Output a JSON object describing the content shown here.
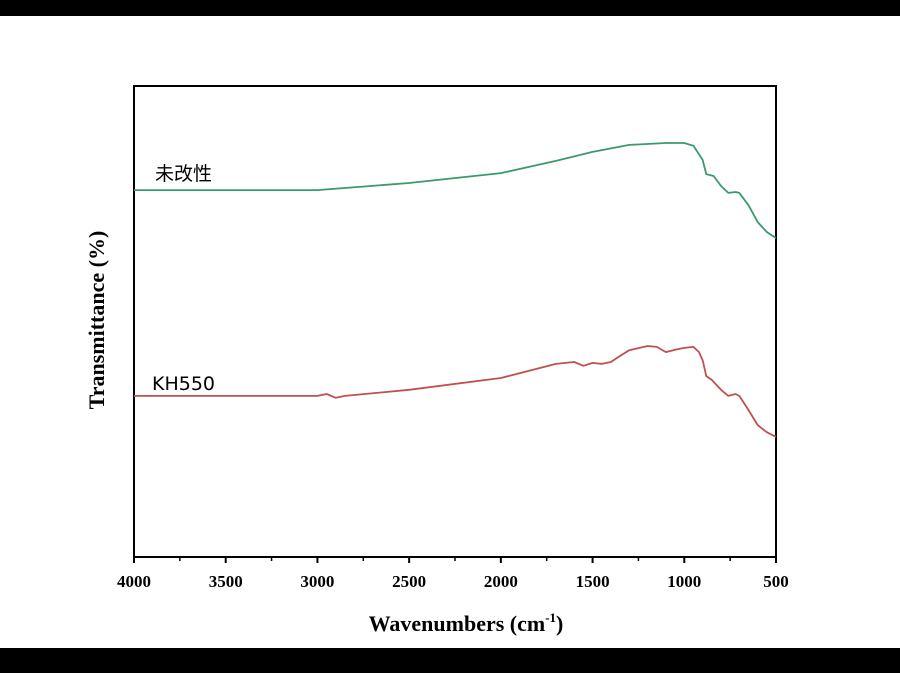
{
  "chart_data": {
    "type": "line",
    "title": "",
    "xlabel": "Wavenumbers (cm",
    "xlabel_sup": "-1",
    "xlabel_end": ")",
    "ylabel": "Transmittance (%)",
    "xlim": [
      4000,
      500
    ],
    "ylim": [
      0,
      100
    ],
    "x_ticks": [
      "4000",
      "3500",
      "3000",
      "2500",
      "2000",
      "1500",
      "1000",
      "500"
    ],
    "x_tick_values": [
      4000,
      3500,
      3000,
      2500,
      2000,
      1500,
      1000,
      500
    ],
    "x_minor_values": [
      3750,
      3250,
      2750,
      2250,
      1750,
      1250,
      750
    ],
    "grid": false,
    "series": [
      {
        "name": "未改性",
        "color": "#3a9a6e",
        "x": [
          4000,
          3000,
          2500,
          2000,
          1700,
          1500,
          1300,
          1100,
          1000,
          950,
          900,
          880,
          840,
          800,
          760,
          720,
          700,
          650,
          600,
          550,
          500
        ],
        "y": [
          77.9,
          77.9,
          79.4,
          81.5,
          84.1,
          86.0,
          87.5,
          87.9,
          87.9,
          87.3,
          84.3,
          81.3,
          80.9,
          78.8,
          77.3,
          77.5,
          77.3,
          74.7,
          71.1,
          69.0,
          67.7
        ]
      },
      {
        "name": "KH550",
        "color": "#c0504d",
        "x": [
          4000,
          3000,
          2950,
          2900,
          2850,
          2500,
          2000,
          1700,
          1600,
          1550,
          1500,
          1450,
          1400,
          1350,
          1300,
          1200,
          1150,
          1100,
          1050,
          1000,
          950,
          920,
          900,
          880,
          850,
          800,
          760,
          720,
          700,
          650,
          600,
          550,
          500
        ],
        "y": [
          34.2,
          34.2,
          34.6,
          33.8,
          34.2,
          35.5,
          38.0,
          41.0,
          41.4,
          40.6,
          41.2,
          41.0,
          41.4,
          42.7,
          43.9,
          44.8,
          44.6,
          43.5,
          44.0,
          44.4,
          44.6,
          43.5,
          41.8,
          38.4,
          37.6,
          35.5,
          34.2,
          34.6,
          34.2,
          31.2,
          28.0,
          26.5,
          25.5
        ]
      }
    ]
  }
}
